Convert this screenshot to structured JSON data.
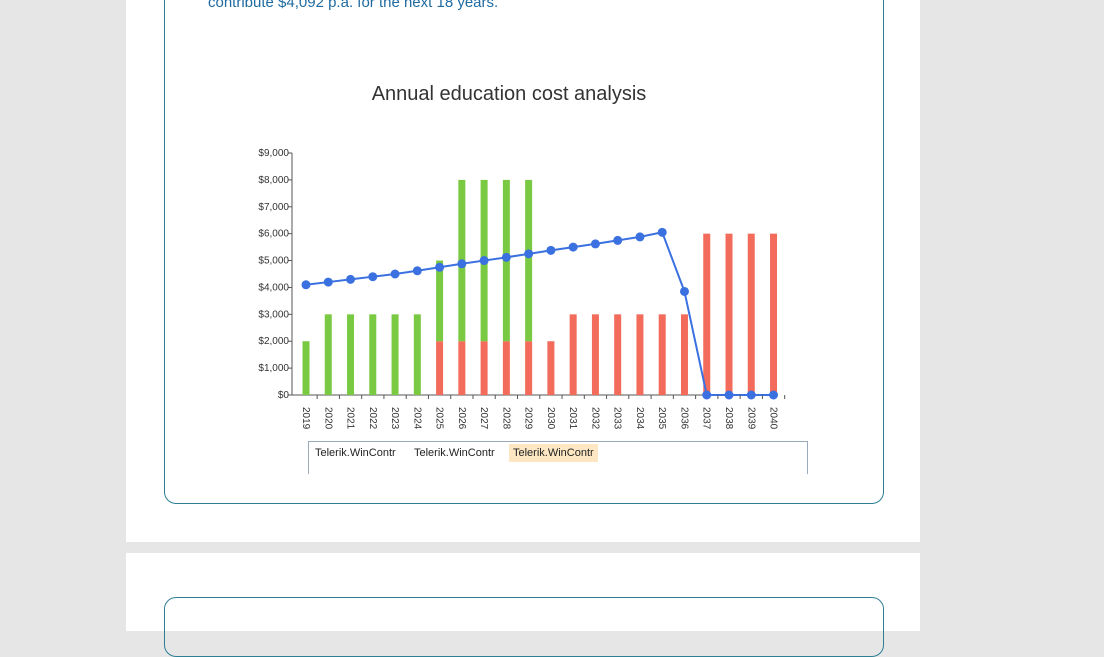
{
  "intro_text": "contribute  $4,092  p.a. for the next  18  years.",
  "legend": {
    "items": [
      "Telerik.WinContr",
      "Telerik.WinContr",
      "Telerik.WinContr"
    ],
    "selected_index": 2
  },
  "colors": {
    "green": "#7ac943",
    "red": "#f26b5b",
    "blue": "#3a70e0",
    "border": "#2e7f94",
    "text_blue": "#1e6aa0"
  },
  "chart_data": {
    "type": "bar",
    "title": "Annual education cost analysis",
    "categories": [
      "2019",
      "2020",
      "2021",
      "2022",
      "2023",
      "2024",
      "2025",
      "2026",
      "2027",
      "2028",
      "2029",
      "2030",
      "2031",
      "2032",
      "2033",
      "2034",
      "2035",
      "2036",
      "2037",
      "2038",
      "2039",
      "2040"
    ],
    "y_ticks": [
      "$0",
      "$1,000",
      "$2,000",
      "$3,000",
      "$4,000",
      "$5,000",
      "$6,000",
      "$7,000",
      "$8,000",
      "$9,000"
    ],
    "ylim": [
      0,
      9000
    ],
    "stacked": true,
    "series": [
      {
        "type": "bar",
        "color": "#f26b5b",
        "values": [
          0,
          0,
          0,
          0,
          0,
          0,
          2000,
          2000,
          2000,
          2000,
          2000,
          2000,
          3000,
          3000,
          3000,
          3000,
          3000,
          3000,
          6000,
          6000,
          6000,
          6000
        ]
      },
      {
        "type": "bar",
        "color": "#7ac943",
        "values": [
          2000,
          3000,
          3000,
          3000,
          3000,
          3000,
          3000,
          6000,
          6000,
          6000,
          6000,
          0,
          0,
          0,
          0,
          0,
          0,
          0,
          0,
          0,
          0,
          0
        ]
      },
      {
        "type": "line",
        "color": "#3a70e0",
        "values": [
          4100,
          4200,
          4300,
          4400,
          4500,
          4620,
          4750,
          4880,
          5000,
          5120,
          5250,
          5380,
          5500,
          5620,
          5750,
          5880,
          6050,
          3850,
          0,
          0,
          0,
          0
        ]
      }
    ]
  }
}
